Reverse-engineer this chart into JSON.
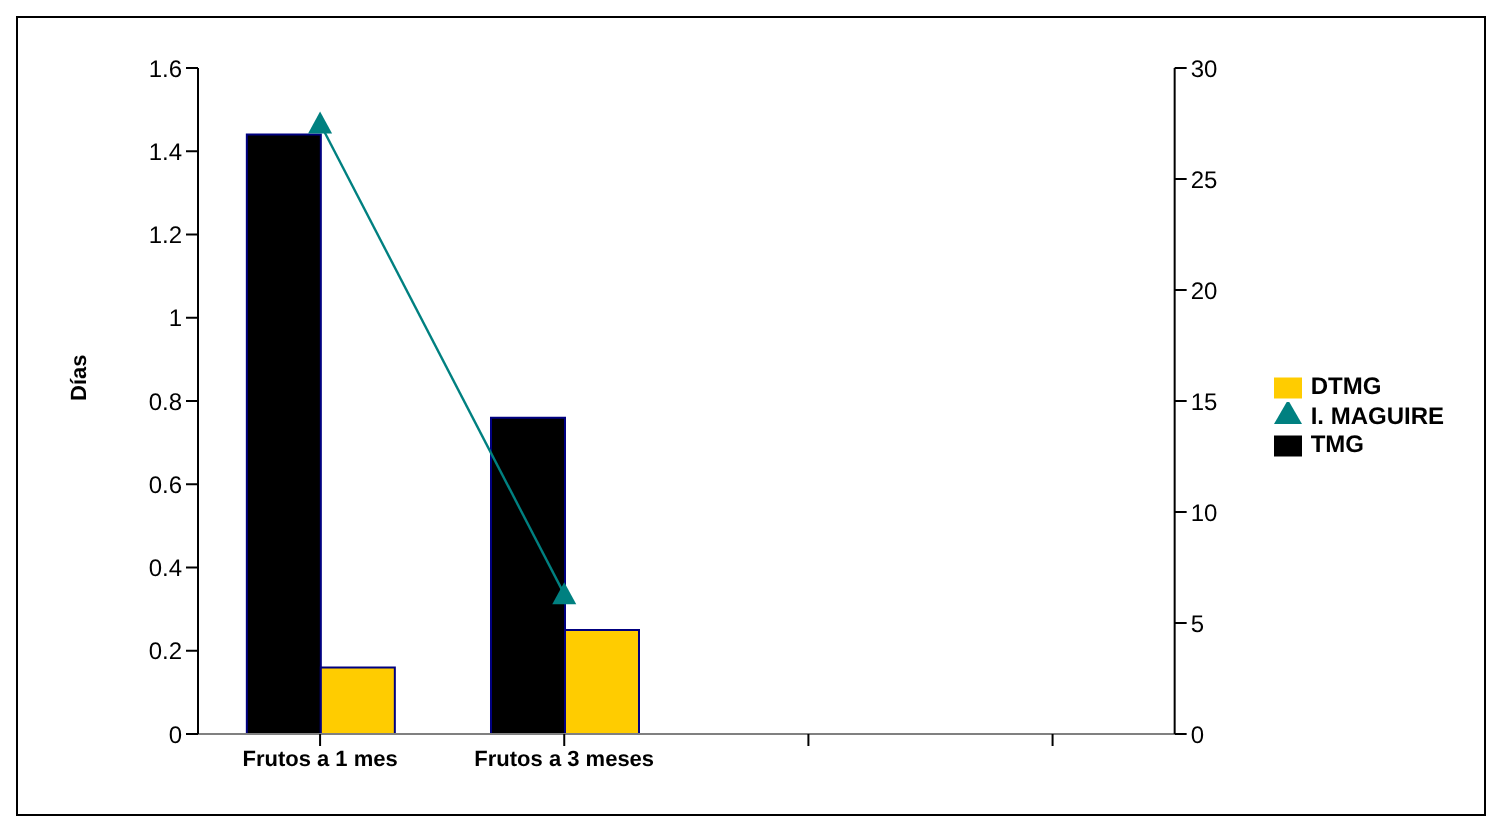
{
  "chart_data": {
    "type": "bar",
    "ylabel": "Días",
    "categories": [
      "Frutos a 1 mes",
      "Frutos  a 3 meses",
      null,
      null
    ],
    "series": [
      {
        "name": "TMG",
        "color": "#000000",
        "values": [
          1.44,
          0.76,
          null,
          null
        ]
      },
      {
        "name": "DTMG",
        "color": "#ffcc00",
        "values": [
          0.16,
          0.25,
          null,
          null
        ]
      },
      {
        "name": "I. MAGUIRE",
        "type": "line",
        "axis": "y2",
        "color": "#008080",
        "values": [
          27.5,
          6.3,
          null,
          null
        ]
      }
    ],
    "ylim": [
      0,
      1.6
    ],
    "yticks": [
      0,
      0.2,
      0.4,
      0.6,
      0.8,
      1,
      1.2,
      1.4,
      1.6
    ],
    "y2lim": [
      0,
      30
    ],
    "y2ticks": [
      0,
      5,
      10,
      15,
      20,
      25,
      30
    ],
    "grid": false,
    "legend": "right",
    "marker": "triangle"
  }
}
